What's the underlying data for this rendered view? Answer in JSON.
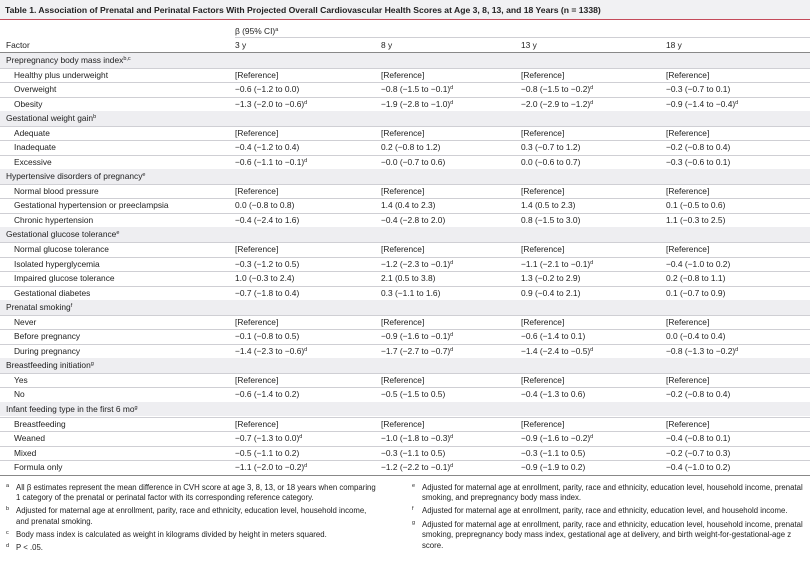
{
  "title": "Table 1. Association of Prenatal and Perinatal Factors With Projected Overall Cardiovascular Health Scores at Age 3, 8, 13, and 18 Years (n = 1338)",
  "header": {
    "group": {
      "text": "β (95% CI)",
      "sup": "a"
    },
    "columns": [
      "Factor",
      "3 y",
      "8 y",
      "13 y",
      "18 y"
    ]
  },
  "groups": [
    {
      "label": {
        "text": "Prepregnancy body mass index",
        "sup": "b,c"
      },
      "rows": [
        {
          "label": "Healthy plus underweight",
          "cells": [
            {
              "text": "[Reference]"
            },
            {
              "text": "[Reference]"
            },
            {
              "text": "[Reference]"
            },
            {
              "text": "[Reference]"
            }
          ]
        },
        {
          "label": "Overweight",
          "cells": [
            {
              "text": "−0.6 (−1.2 to 0.0)"
            },
            {
              "text": "−0.8 (−1.5 to −0.1)",
              "sup": "d"
            },
            {
              "text": "−0.8 (−1.5 to −0.2)",
              "sup": "d"
            },
            {
              "text": "−0.3 (−0.7 to 0.1)"
            }
          ]
        },
        {
          "label": "Obesity",
          "cells": [
            {
              "text": "−1.3 (−2.0 to −0.6)",
              "sup": "d"
            },
            {
              "text": "−1.9 (−2.8 to −1.0)",
              "sup": "d"
            },
            {
              "text": "−2.0 (−2.9 to −1.2)",
              "sup": "d"
            },
            {
              "text": "−0.9 (−1.4 to −0.4)",
              "sup": "d"
            }
          ]
        }
      ]
    },
    {
      "label": {
        "text": "Gestational weight gain",
        "sup": "b"
      },
      "rows": [
        {
          "label": "Adequate",
          "cells": [
            {
              "text": "[Reference]"
            },
            {
              "text": "[Reference]"
            },
            {
              "text": "[Reference]"
            },
            {
              "text": "[Reference]"
            }
          ]
        },
        {
          "label": "Inadequate",
          "cells": [
            {
              "text": "−0.4 (−1.2 to 0.4)"
            },
            {
              "text": "0.2 (−0.8 to 1.2)"
            },
            {
              "text": "0.3 (−0.7 to 1.2)"
            },
            {
              "text": "−0.2 (−0.8 to 0.4)"
            }
          ]
        },
        {
          "label": "Excessive",
          "cells": [
            {
              "text": "−0.6 (−1.1 to −0.1)",
              "sup": "d"
            },
            {
              "text": "−0.0 (−0.7 to 0.6)"
            },
            {
              "text": "0.0 (−0.6 to 0.7)"
            },
            {
              "text": "−0.3 (−0.6 to 0.1)"
            }
          ]
        }
      ]
    },
    {
      "label": {
        "text": "Hypertensive disorders of pregnancy",
        "sup": "e"
      },
      "rows": [
        {
          "label": "Normal blood pressure",
          "cells": [
            {
              "text": "[Reference]"
            },
            {
              "text": "[Reference]"
            },
            {
              "text": "[Reference]"
            },
            {
              "text": "[Reference]"
            }
          ]
        },
        {
          "label": "Gestational hypertension or preeclampsia",
          "cells": [
            {
              "text": "0.0 (−0.8 to 0.8)"
            },
            {
              "text": "1.4 (0.4 to 2.3)"
            },
            {
              "text": "1.4 (0.5 to 2.3)"
            },
            {
              "text": "0.1 (−0.5 to 0.6)"
            }
          ]
        },
        {
          "label": "Chronic hypertension",
          "cells": [
            {
              "text": "−0.4 (−2.4 to 1.6)"
            },
            {
              "text": "−0.4 (−2.8 to 2.0)"
            },
            {
              "text": "0.8 (−1.5 to 3.0)"
            },
            {
              "text": "1.1 (−0.3 to 2.5)"
            }
          ]
        }
      ]
    },
    {
      "label": {
        "text": "Gestational glucose tolerance",
        "sup": "e"
      },
      "rows": [
        {
          "label": "Normal glucose tolerance",
          "cells": [
            {
              "text": "[Reference]"
            },
            {
              "text": "[Reference]"
            },
            {
              "text": "[Reference]"
            },
            {
              "text": "[Reference]"
            }
          ]
        },
        {
          "label": "Isolated hyperglycemia",
          "cells": [
            {
              "text": "−0.3 (−1.2 to 0.5)"
            },
            {
              "text": "−1.2 (−2.3 to −0.1)",
              "sup": "d"
            },
            {
              "text": "−1.1 (−2.1 to −0.1)",
              "sup": "d"
            },
            {
              "text": "−0.4 (−1.0 to 0.2)"
            }
          ]
        },
        {
          "label": "Impaired glucose tolerance",
          "cells": [
            {
              "text": "1.0 (−0.3 to 2.4)"
            },
            {
              "text": "2.1 (0.5 to 3.8)"
            },
            {
              "text": "1.3 (−0.2 to 2.9)"
            },
            {
              "text": "0.2 (−0.8 to 1.1)"
            }
          ]
        },
        {
          "label": "Gestational diabetes",
          "cells": [
            {
              "text": "−0.7 (−1.8 to 0.4)"
            },
            {
              "text": "0.3 (−1.1 to 1.6)"
            },
            {
              "text": "0.9 (−0.4 to 2.1)"
            },
            {
              "text": "0.1 (−0.7 to 0.9)"
            }
          ]
        }
      ]
    },
    {
      "label": {
        "text": "Prenatal smoking",
        "sup": "f"
      },
      "rows": [
        {
          "label": "Never",
          "cells": [
            {
              "text": "[Reference]"
            },
            {
              "text": "[Reference]"
            },
            {
              "text": "[Reference]"
            },
            {
              "text": "[Reference]"
            }
          ]
        },
        {
          "label": "Before pregnancy",
          "cells": [
            {
              "text": "−0.1 (−0.8 to 0.5)"
            },
            {
              "text": "−0.9 (−1.6 to −0.1)",
              "sup": "d"
            },
            {
              "text": "−0.6 (−1.4 to 0.1)"
            },
            {
              "text": "0.0 (−0.4 to 0.4)"
            }
          ]
        },
        {
          "label": "During pregnancy",
          "cells": [
            {
              "text": "−1.4 (−2.3 to −0.6)",
              "sup": "d"
            },
            {
              "text": "−1.7 (−2.7 to −0.7)",
              "sup": "d"
            },
            {
              "text": "−1.4 (−2.4 to −0.5)",
              "sup": "d"
            },
            {
              "text": "−0.8 (−1.3 to −0.2)",
              "sup": "d"
            }
          ]
        }
      ]
    },
    {
      "label": {
        "text": "Breastfeeding initiation",
        "sup": "g"
      },
      "rows": [
        {
          "label": "Yes",
          "cells": [
            {
              "text": "[Reference]"
            },
            {
              "text": "[Reference]"
            },
            {
              "text": "[Reference]"
            },
            {
              "text": "[Reference]"
            }
          ]
        },
        {
          "label": "No",
          "cells": [
            {
              "text": "−0.6 (−1.4 to 0.2)"
            },
            {
              "text": "−0.5 (−1.5 to 0.5)"
            },
            {
              "text": "−0.4 (−1.3 to 0.6)"
            },
            {
              "text": "−0.2 (−0.8 to 0.4)"
            }
          ]
        }
      ]
    },
    {
      "label": {
        "text": "Infant feeding type in the first 6 mo",
        "sup": "g"
      },
      "rows": [
        {
          "label": "Breastfeeding",
          "cells": [
            {
              "text": "[Reference]"
            },
            {
              "text": "[Reference]"
            },
            {
              "text": "[Reference]"
            },
            {
              "text": "[Reference]"
            }
          ]
        },
        {
          "label": "Weaned",
          "cells": [
            {
              "text": "−0.7 (−1.3 to 0.0)",
              "sup": "d"
            },
            {
              "text": "−1.0 (−1.8 to −0.3)",
              "sup": "d"
            },
            {
              "text": "−0.9 (−1.6 to −0.2)",
              "sup": "d"
            },
            {
              "text": "−0.4 (−0.8 to 0.1)"
            }
          ]
        },
        {
          "label": "Mixed",
          "cells": [
            {
              "text": "−0.5 (−1.1 to 0.2)"
            },
            {
              "text": "−0.3 (−1.1 to 0.5)"
            },
            {
              "text": "−0.3 (−1.1 to 0.5)"
            },
            {
              "text": "−0.2 (−0.7 to 0.3)"
            }
          ]
        },
        {
          "label": "Formula only",
          "cells": [
            {
              "text": "−1.1 (−2.0 to −0.2)",
              "sup": "d"
            },
            {
              "text": "−1.2 (−2.2 to −0.1)",
              "sup": "d"
            },
            {
              "text": "−0.9 (−1.9 to 0.2)"
            },
            {
              "text": "−0.4 (−1.0 to 0.2)"
            }
          ]
        }
      ]
    }
  ],
  "footnotes": [
    {
      "key": "a",
      "text": "All β estimates represent the mean difference in CVH score at age 3, 8, 13, or 18 years when comparing 1 category of the prenatal or perinatal factor with its corresponding reference category."
    },
    {
      "key": "b",
      "text": "Adjusted for maternal age at enrollment, parity, race and ethnicity, education level, household income, and prenatal smoking."
    },
    {
      "key": "c",
      "text": "Body mass index is calculated as weight in kilograms divided by height in meters squared."
    },
    {
      "key": "d",
      "text": "P < .05."
    },
    {
      "key": "e",
      "text": "Adjusted for maternal age at enrollment, parity, race and ethnicity, education level, household income, prenatal smoking, and prepregnancy body mass index."
    },
    {
      "key": "f",
      "text": "Adjusted for maternal age at enrollment, parity, race and ethnicity, education level, and household income."
    },
    {
      "key": "g",
      "text": "Adjusted for maternal age at enrollment, parity, race and ethnicity, education level, household income, prenatal smoking, prepregnancy body mass index, gestational age at delivery, and birth weight-for-gestational-age z score."
    }
  ]
}
